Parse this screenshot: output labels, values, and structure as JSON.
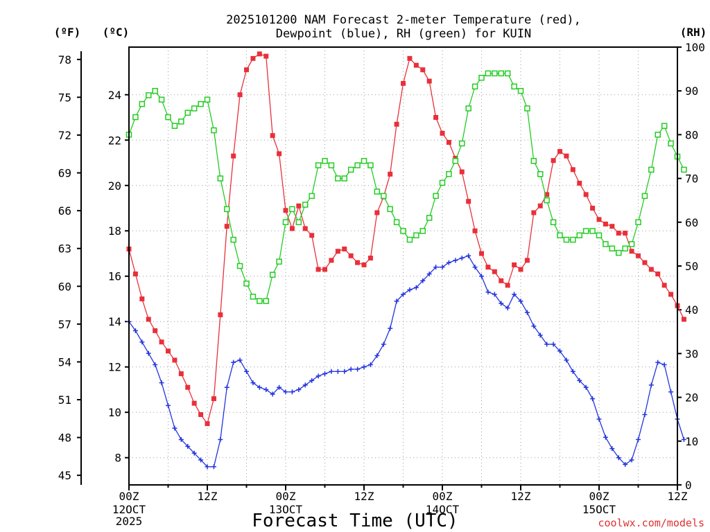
{
  "chart_data": {
    "type": "line",
    "title_line1": "2025101200 NAM Forecast 2-meter Temperature (red),",
    "title_line2": "Dewpoint (blue), RH (green) for KUIN",
    "xlabel": "Forecast Time (UTC)",
    "credit": "coolwx.com/models",
    "left_unit_f": "(ºF)",
    "left_unit_c": "(ºC)",
    "right_unit": "(RH)",
    "x_range_hours": [
      0,
      84
    ],
    "x_ticks": [
      {
        "hour": 0,
        "label": "00Z",
        "sub1": "12OCT",
        "sub2": "2025"
      },
      {
        "hour": 12,
        "label": "12Z",
        "sub1": "",
        "sub2": ""
      },
      {
        "hour": 24,
        "label": "00Z",
        "sub1": "13OCT",
        "sub2": ""
      },
      {
        "hour": 36,
        "label": "12Z",
        "sub1": "",
        "sub2": ""
      },
      {
        "hour": 48,
        "label": "00Z",
        "sub1": "14OCT",
        "sub2": ""
      },
      {
        "hour": 60,
        "label": "12Z",
        "sub1": "",
        "sub2": ""
      },
      {
        "hour": 72,
        "label": "00Z",
        "sub1": "15OCT",
        "sub2": ""
      },
      {
        "hour": 84,
        "label": "12Z",
        "sub1": "",
        "sub2": ""
      }
    ],
    "celsius_range": [
      6.8,
      26.1
    ],
    "celsius_ticks": [
      8,
      10,
      12,
      14,
      16,
      18,
      20,
      22,
      24
    ],
    "fahrenheit_ticks": [
      45,
      48,
      51,
      54,
      57,
      60,
      63,
      66,
      69,
      72,
      75,
      78
    ],
    "rh_range": [
      0,
      100
    ],
    "rh_ticks": [
      0,
      10,
      20,
      30,
      40,
      50,
      60,
      70,
      80,
      90,
      100
    ],
    "series": [
      {
        "name": "2-meter Temperature",
        "unit": "C",
        "color": "#e8303a",
        "values": [
          17.2,
          16.1,
          15.0,
          14.1,
          13.6,
          13.1,
          12.7,
          12.3,
          11.7,
          11.1,
          10.4,
          9.9,
          9.5,
          10.6,
          14.3,
          18.2,
          21.3,
          24.0,
          25.1,
          25.6,
          25.8,
          25.7,
          22.2,
          21.4,
          18.9,
          18.1,
          19.1,
          18.1,
          17.8,
          16.3,
          16.3,
          16.7,
          17.1,
          17.2,
          16.9,
          16.6,
          16.5,
          16.8,
          18.8,
          19.5,
          20.5,
          22.7,
          24.5,
          25.6,
          25.3,
          25.1,
          24.6,
          23.0,
          22.3,
          21.9,
          21.2,
          20.6,
          19.3,
          18.0,
          17.0,
          16.4,
          16.2,
          15.8,
          15.6,
          16.5,
          16.3,
          16.7,
          18.8,
          19.1,
          19.6,
          21.1,
          21.5,
          21.3,
          20.7,
          20.1,
          19.6,
          19.0,
          18.5,
          18.3,
          18.2,
          17.9,
          17.9,
          17.1,
          16.9,
          16.6,
          16.3,
          16.1,
          15.6,
          15.2,
          14.7,
          14.1
        ]
      },
      {
        "name": "Dewpoint",
        "unit": "C",
        "color": "#2233dd",
        "values": [
          14.0,
          13.6,
          13.1,
          12.6,
          12.1,
          11.3,
          10.3,
          9.3,
          8.8,
          8.5,
          8.2,
          7.9,
          7.6,
          7.6,
          8.8,
          11.1,
          12.2,
          12.3,
          11.8,
          11.3,
          11.1,
          11.0,
          10.8,
          11.1,
          10.9,
          10.9,
          11.0,
          11.2,
          11.4,
          11.6,
          11.7,
          11.8,
          11.8,
          11.8,
          11.9,
          11.9,
          12.0,
          12.1,
          12.5,
          13.0,
          13.7,
          14.9,
          15.2,
          15.4,
          15.5,
          15.8,
          16.1,
          16.4,
          16.4,
          16.6,
          16.7,
          16.8,
          16.9,
          16.4,
          16.0,
          15.3,
          15.2,
          14.8,
          14.6,
          15.2,
          14.9,
          14.4,
          13.8,
          13.4,
          13.0,
          13.0,
          12.7,
          12.3,
          11.8,
          11.4,
          11.1,
          10.6,
          9.7,
          8.9,
          8.4,
          8.0,
          7.7,
          7.9,
          8.8,
          9.9,
          11.2,
          12.2,
          12.1,
          10.9,
          9.7,
          8.8
        ]
      },
      {
        "name": "RH",
        "unit": "%",
        "color": "#22cc22",
        "values": [
          80,
          84,
          87,
          89,
          90,
          88,
          84,
          82,
          83,
          85,
          86,
          87,
          88,
          81,
          70,
          63,
          56,
          50,
          46,
          43,
          42,
          42,
          48,
          51,
          60,
          63,
          60,
          64,
          66,
          73,
          74,
          73,
          70,
          70,
          72,
          73,
          74,
          73,
          67,
          66,
          63,
          60,
          58,
          56,
          57,
          58,
          61,
          66,
          69,
          71,
          74,
          78,
          86,
          91,
          93,
          94,
          94,
          94,
          94,
          91,
          90,
          86,
          74,
          71,
          65,
          60,
          57,
          56,
          56,
          57,
          58,
          58,
          57,
          55,
          54,
          53,
          54,
          55,
          60,
          66,
          72,
          80,
          82,
          78,
          75,
          72
        ]
      }
    ]
  }
}
